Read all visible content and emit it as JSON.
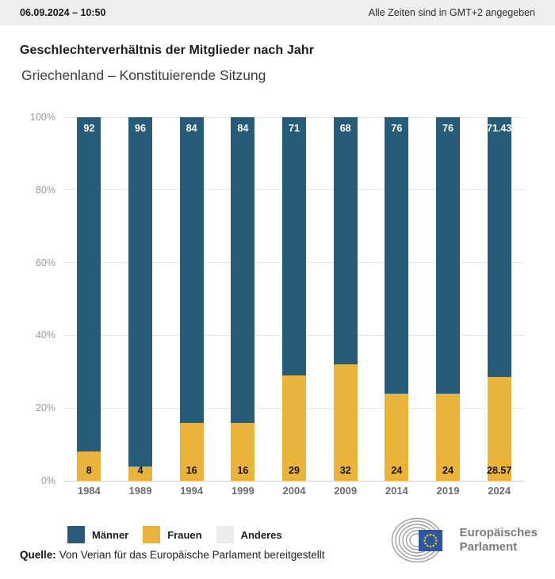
{
  "header": {
    "datetime": "06.09.2024 – 10:50",
    "timezone_note": "Alle Zeiten sind in GMT+2 angegeben"
  },
  "title": "Geschlechterverhältnis der Mitglieder nach Jahr",
  "subtitle": "Griechenland – Konstituierende Sitzung",
  "colors": {
    "men": "#275b78",
    "women": "#eab33c",
    "other": "#ececec",
    "grid": "#e8e8e8",
    "axis_line": "#d2d2d2",
    "eu_flag_blue": "#2c56a5",
    "eu_star_yellow": "#f2c500"
  },
  "chart_data": {
    "type": "bar",
    "stacked": true,
    "title": "Geschlechterverhältnis der Mitglieder nach Jahr",
    "subtitle": "Griechenland – Konstituierende Sitzung",
    "categories": [
      "1984",
      "1989",
      "1994",
      "1999",
      "2004",
      "2009",
      "2014",
      "2019",
      "2024"
    ],
    "series": [
      {
        "name": "Männer",
        "color_key": "men",
        "values": [
          92,
          96,
          84,
          84,
          71,
          68,
          76,
          76,
          71.43
        ],
        "labels": [
          "92",
          "96",
          "84",
          "84",
          "71",
          "68",
          "76",
          "76",
          "71.43"
        ]
      },
      {
        "name": "Frauen",
        "color_key": "women",
        "values": [
          8,
          4,
          16,
          16,
          29,
          32,
          24,
          24,
          28.57
        ],
        "labels": [
          "8",
          "4",
          "16",
          "16",
          "29",
          "32",
          "24",
          "24",
          "28.57"
        ]
      },
      {
        "name": "Anderes",
        "color_key": "other",
        "values": [
          0,
          0,
          0,
          0,
          0,
          0,
          0,
          0,
          0
        ],
        "labels": [
          "",
          "",
          "",
          "",
          "",
          "",
          "",
          "",
          ""
        ]
      }
    ],
    "xlabel": "",
    "ylabel": "",
    "ylim": [
      0,
      100
    ],
    "yticks": [
      "100%",
      "80%",
      "60%",
      "40%",
      "20%",
      "0%"
    ],
    "grid": true,
    "legend_position": "bottom"
  },
  "legend": {
    "items": [
      {
        "label": "Männer",
        "color_key": "men"
      },
      {
        "label": "Frauen",
        "color_key": "women"
      },
      {
        "label": "Anderes",
        "color_key": "other"
      }
    ]
  },
  "footer": {
    "source_label": "Quelle:",
    "source_text": "Von Verian für das Europäische Parlament bereitgestellt"
  },
  "logo": {
    "line1": "Europäisches",
    "line2": "Parlament"
  }
}
